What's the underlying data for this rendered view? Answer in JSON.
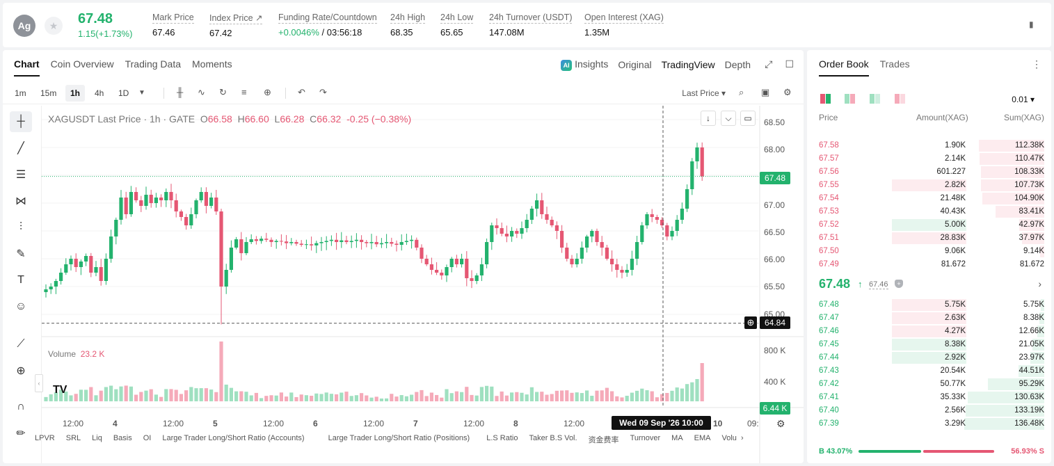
{
  "ticker": {
    "coin_abbr": "Ag",
    "last_price": "67.48",
    "change": "1.15(+1.73%)",
    "stats": [
      {
        "label": "Mark Price",
        "value": "67.46"
      },
      {
        "label": "Index Price ↗",
        "value": "67.42"
      },
      {
        "label": "Funding Rate/Countdown",
        "value_green": "+0.0046%",
        "value": " / 03:56:18"
      },
      {
        "label": "24h High",
        "value": "68.35"
      },
      {
        "label": "24h Low",
        "value": "65.65"
      },
      {
        "label": "24h Turnover (USDT)",
        "value": "147.08M"
      },
      {
        "label": "Open Interest (XAG)",
        "value": "1.35M"
      }
    ]
  },
  "chart_panel": {
    "tabs": [
      "Chart",
      "Coin Overview",
      "Trading Data",
      "Moments"
    ],
    "view_tabs": {
      "insights": "Insights",
      "original": "Original",
      "tradingview": "TradingView",
      "depth": "Depth"
    },
    "intervals": [
      "1m",
      "15m",
      "1h",
      "4h",
      "1D"
    ],
    "price_type": "Last Price ▾",
    "legend": {
      "symbol": "XAGUSDT Last Price · 1h · GATE",
      "o": "66.58",
      "h": "66.60",
      "l": "66.28",
      "c": "66.32",
      "chg": "-0.25 (−0.38%)"
    },
    "volume_legend": {
      "label": "Volume",
      "value": "23.2 K"
    },
    "price_axis": [
      "68.50",
      "68.00",
      "67.00",
      "66.50",
      "66.00",
      "65.50",
      "65.00"
    ],
    "volume_axis": [
      "800 K",
      "400 K"
    ],
    "current_price_tag": "67.48",
    "crosshair_price_tag": "64.84",
    "volume_tag": "6.44 K",
    "time_axis": [
      "12:00",
      "4",
      "12:00",
      "5",
      "12:00",
      "6",
      "12:00",
      "7",
      "12:00",
      "8",
      "12:00",
      "10",
      "09:"
    ],
    "crosshair_date": "Wed 09 Sep '26   10:00",
    "indicators": [
      "LPVR",
      "SRL",
      "Liq",
      "Basis",
      "OI",
      "Large Trader Long/Short Ratio (Accounts)",
      "Large Trader Long/Short Ratio (Positions)",
      "L.S Ratio",
      "Taker B.S Vol.",
      "资金费率",
      "Turnover",
      "MA",
      "EMA",
      "Volu"
    ],
    "colors": {
      "up": "#23b26d",
      "down": "#e55773",
      "up_vol": "#9fe0c0",
      "down_vol": "#f5aab9"
    }
  },
  "chart_data": {
    "type": "candlestick",
    "title": "XAGUSDT Last Price · 1h · GATE",
    "ylabel": "",
    "ylim": [
      64.6,
      68.75
    ],
    "x_ticks": [
      "12:00",
      "4",
      "12:00",
      "5",
      "12:00",
      "6",
      "12:00",
      "7",
      "12:00",
      "8",
      "12:00",
      "10"
    ],
    "closes": [
      65.45,
      65.5,
      65.6,
      65.75,
      65.9,
      66.0,
      65.85,
      65.95,
      66.05,
      65.75,
      65.85,
      65.6,
      66.0,
      66.4,
      66.7,
      67.1,
      66.8,
      67.2,
      67.05,
      66.95,
      67.15,
      67.0,
      67.1,
      67.05,
      67.2,
      67.05,
      66.85,
      66.75,
      66.6,
      66.8,
      67.05,
      67.2,
      66.95,
      67.1,
      66.85,
      65.5,
      65.8,
      66.2,
      66.35,
      66.1,
      66.3,
      66.35,
      66.32,
      66.36,
      66.34,
      66.3,
      66.32,
      66.31,
      66.28,
      66.3,
      66.27,
      66.25,
      66.26,
      66.24,
      66.28,
      66.3,
      66.32,
      66.34,
      66.3,
      66.33,
      66.3,
      66.32,
      66.34,
      66.3,
      66.28,
      66.3,
      66.26,
      66.28,
      66.3,
      66.27,
      66.25,
      66.3,
      66.32,
      66.34,
      66.2,
      66.0,
      65.9,
      65.8,
      65.75,
      65.7,
      65.85,
      66.0,
      65.9,
      66.0,
      65.65,
      65.6,
      65.7,
      65.9,
      66.3,
      66.6,
      66.55,
      66.45,
      66.4,
      66.5,
      66.45,
      66.55,
      66.7,
      66.9,
      67.05,
      66.8,
      66.7,
      66.6,
      66.5,
      66.2,
      66.0,
      65.9,
      66.0,
      66.2,
      66.4,
      66.5,
      66.3,
      66.2,
      66.0,
      65.9,
      65.8,
      65.75,
      65.8,
      66.0,
      66.3,
      66.6,
      66.8,
      66.75,
      66.7,
      66.6,
      66.4,
      66.5,
      66.7,
      66.9,
      67.25,
      67.75,
      68.0,
      67.48
    ],
    "volume_label": "Volume",
    "current_price": 67.48
  },
  "orderbook": {
    "tabs": [
      "Order Book",
      "Trades"
    ],
    "precision": "0.01 ▾",
    "columns": {
      "price": "Price",
      "amount": "Amount(XAG)",
      "sum": "Sum(XAG)"
    },
    "asks": [
      {
        "price": "67.58",
        "amount": "1.90K",
        "sum": "112.38K",
        "depth": 0.82,
        "amt_frac": 0
      },
      {
        "price": "67.57",
        "amount": "2.14K",
        "sum": "110.47K",
        "depth": 0.81,
        "amt_frac": 0
      },
      {
        "price": "67.56",
        "amount": "601.227",
        "sum": "108.33K",
        "depth": 0.79,
        "amt_frac": 0
      },
      {
        "price": "67.55",
        "amount": "2.82K",
        "sum": "107.73K",
        "depth": 0.79,
        "amt_frac": 0.48
      },
      {
        "price": "67.54",
        "amount": "21.48K",
        "sum": "104.90K",
        "depth": 0.77,
        "amt_frac": 0
      },
      {
        "price": "67.53",
        "amount": "40.43K",
        "sum": "83.41K",
        "depth": 0.61,
        "amt_frac": 0
      },
      {
        "price": "67.52",
        "amount": "5.00K",
        "sum": "42.97K",
        "depth": 0.31,
        "amt_frac": 0.48,
        "amt_green": true
      },
      {
        "price": "67.51",
        "amount": "28.83K",
        "sum": "37.97K",
        "depth": 0.28,
        "amt_frac": 0.48
      },
      {
        "price": "67.50",
        "amount": "9.06K",
        "sum": "9.14K",
        "depth": 0.05,
        "amt_frac": 0
      },
      {
        "price": "67.49",
        "amount": "81.672",
        "sum": "81.672",
        "depth": 0.0,
        "amt_frac": 0
      }
    ],
    "mid": {
      "price": "67.48",
      "arrow": "↑",
      "mark": "67.46"
    },
    "bids": [
      {
        "price": "67.48",
        "amount": "5.75K",
        "sum": "5.75K",
        "depth": 0.04,
        "amt_frac": 0.48
      },
      {
        "price": "67.47",
        "amount": "2.63K",
        "sum": "8.38K",
        "depth": 0.06,
        "amt_frac": 0.48
      },
      {
        "price": "67.46",
        "amount": "4.27K",
        "sum": "12.66K",
        "depth": 0.09,
        "amt_frac": 0.48
      },
      {
        "price": "67.45",
        "amount": "8.38K",
        "sum": "21.05K",
        "depth": 0.15,
        "amt_frac": 0.48,
        "amt_green": true
      },
      {
        "price": "67.44",
        "amount": "2.92K",
        "sum": "23.97K",
        "depth": 0.17,
        "amt_frac": 0.48,
        "amt_green": true
      },
      {
        "price": "67.43",
        "amount": "20.54K",
        "sum": "44.51K",
        "depth": 0.32,
        "amt_frac": 0
      },
      {
        "price": "67.42",
        "amount": "50.77K",
        "sum": "95.29K",
        "depth": 0.7,
        "amt_frac": 0
      },
      {
        "price": "67.41",
        "amount": "35.33K",
        "sum": "130.63K",
        "depth": 0.96,
        "amt_frac": 0
      },
      {
        "price": "67.40",
        "amount": "2.56K",
        "sum": "133.19K",
        "depth": 0.98,
        "amt_frac": 0
      },
      {
        "price": "67.39",
        "amount": "3.29K",
        "sum": "136.48K",
        "depth": 1.0,
        "amt_frac": 0
      }
    ],
    "ratio": {
      "buy": "B  43.07%",
      "sell": "56.93%  S",
      "buy_frac": 0.4307
    }
  }
}
